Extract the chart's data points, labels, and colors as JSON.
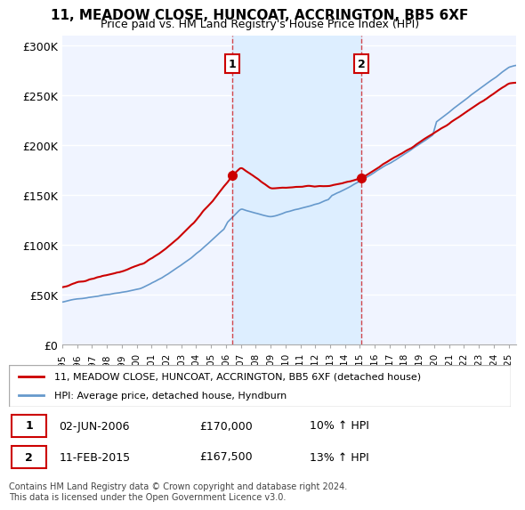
{
  "title": "11, MEADOW CLOSE, HUNCOAT, ACCRINGTON, BB5 6XF",
  "subtitle": "Price paid vs. HM Land Registry's House Price Index (HPI)",
  "ylabel_ticks": [
    "£0",
    "£50K",
    "£100K",
    "£150K",
    "£200K",
    "£250K",
    "£300K"
  ],
  "ytick_values": [
    0,
    50000,
    100000,
    150000,
    200000,
    250000,
    300000
  ],
  "ylim": [
    0,
    310000
  ],
  "xlim_start": 1995.0,
  "xlim_end": 2025.5,
  "marker1_date": 2006.42,
  "marker1_price": 170000,
  "marker1_label": "1",
  "marker2_date": 2015.1,
  "marker2_price": 167500,
  "marker2_label": "2",
  "legend_line1": "11, MEADOW CLOSE, HUNCOAT, ACCRINGTON, BB5 6XF (detached house)",
  "legend_line2": "HPI: Average price, detached house, Hyndburn",
  "table_row1": [
    "1",
    "02-JUN-2006",
    "£170,000",
    "10% ↑ HPI"
  ],
  "table_row2": [
    "2",
    "11-FEB-2015",
    "£167,500",
    "13% ↑ HPI"
  ],
  "footnote": "Contains HM Land Registry data © Crown copyright and database right 2024.\nThis data is licensed under the Open Government Licence v3.0.",
  "color_red": "#cc0000",
  "color_blue": "#6699cc",
  "color_shading": "#ddeeff",
  "color_marker_box": "#cc0000",
  "background_plot": "#f0f4ff",
  "grid_color": "#ffffff"
}
